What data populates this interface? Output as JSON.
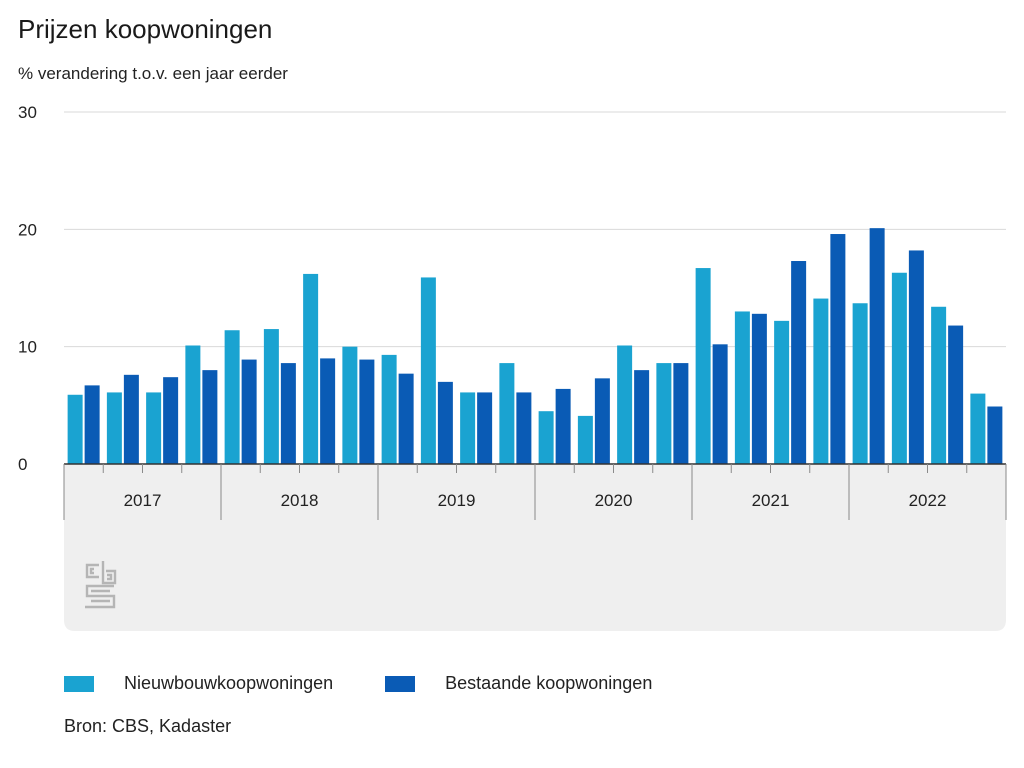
{
  "header": {
    "title": "Prijzen koopwoningen",
    "subtitle": "% verandering t.o.v. een jaar eerder"
  },
  "colors": {
    "nieuwbouw": "#1aa3d1",
    "bestaand": "#0a5bb5",
    "grid": "#d9d9d9",
    "axis_band": "#efefef"
  },
  "logo": {
    "name": "cbs-logo",
    "text": "cbs"
  },
  "chart_data": {
    "type": "bar",
    "title": "Prijzen koopwoningen",
    "ylabel": "% verandering t.o.v. een jaar eerder",
    "ylim": [
      0,
      30
    ],
    "yticks": [
      0,
      10,
      20,
      30
    ],
    "grid": true,
    "legend_position": "bottom",
    "years": [
      "2017",
      "2018",
      "2019",
      "2020",
      "2021",
      "2022"
    ],
    "categories": [
      "2017 Q1",
      "2017 Q2",
      "2017 Q3",
      "2017 Q4",
      "2018 Q1",
      "2018 Q2",
      "2018 Q3",
      "2018 Q4",
      "2019 Q1",
      "2019 Q2",
      "2019 Q3",
      "2019 Q4",
      "2020 Q1",
      "2020 Q2",
      "2020 Q3",
      "2020 Q4",
      "2021 Q1",
      "2021 Q2",
      "2021 Q3",
      "2021 Q4",
      "2022 Q1",
      "2022 Q2",
      "2022 Q3",
      "2022 Q4"
    ],
    "series": [
      {
        "name": "Nieuwbouwkoopwoningen",
        "values": [
          5.9,
          6.1,
          6.1,
          10.1,
          11.4,
          11.5,
          16.2,
          10.0,
          9.3,
          15.9,
          6.1,
          8.6,
          4.5,
          4.1,
          10.1,
          8.6,
          16.7,
          13.0,
          12.2,
          14.1,
          13.7,
          16.3,
          13.4,
          6.0
        ]
      },
      {
        "name": "Bestaande koopwoningen",
        "values": [
          6.7,
          7.6,
          7.4,
          8.0,
          8.9,
          8.6,
          9.0,
          8.9,
          7.7,
          7.0,
          6.1,
          6.1,
          6.4,
          7.3,
          8.0,
          8.6,
          10.2,
          12.8,
          17.3,
          19.6,
          20.1,
          18.2,
          11.8,
          4.9
        ]
      }
    ]
  },
  "source": "Bron: CBS, Kadaster"
}
